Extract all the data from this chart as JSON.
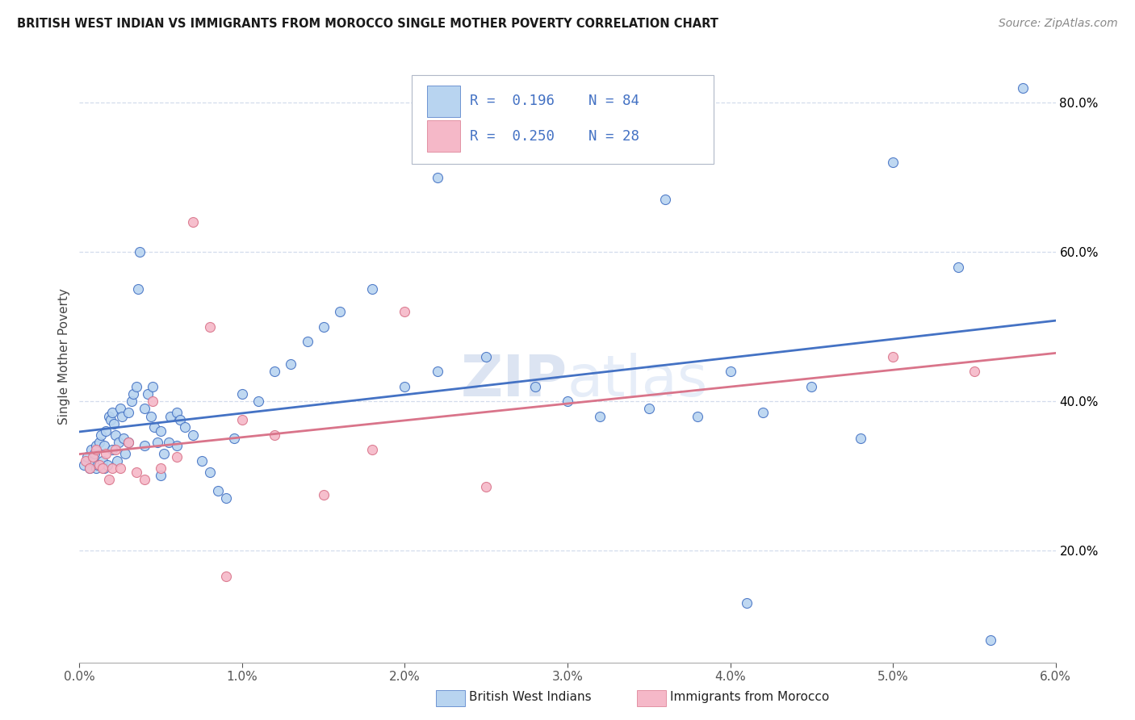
{
  "title": "BRITISH WEST INDIAN VS IMMIGRANTS FROM MOROCCO SINGLE MOTHER POVERTY CORRELATION CHART",
  "source": "Source: ZipAtlas.com",
  "ylabel": "Single Mother Poverty",
  "legend_label1": "British West Indians",
  "legend_label2": "Immigrants from Morocco",
  "R1": 0.196,
  "N1": 84,
  "R2": 0.25,
  "N2": 28,
  "color1": "#b8d4f0",
  "color2": "#f5b8c8",
  "line1_color": "#4472c4",
  "line2_color": "#d9748a",
  "tick_color": "#4472c4",
  "watermark_color": "#c8d8ee",
  "xlim": [
    0.0,
    0.06
  ],
  "ylim": [
    0.05,
    0.87
  ],
  "xticks": [
    0.0,
    0.01,
    0.02,
    0.03,
    0.04,
    0.05,
    0.06
  ],
  "yticks": [
    0.2,
    0.4,
    0.6,
    0.8
  ],
  "blue_x": [
    0.0003,
    0.0005,
    0.0006,
    0.0007,
    0.0008,
    0.0009,
    0.001,
    0.001,
    0.0011,
    0.0012,
    0.0013,
    0.0014,
    0.0015,
    0.0015,
    0.0016,
    0.0017,
    0.0018,
    0.0019,
    0.002,
    0.002,
    0.0021,
    0.0022,
    0.0023,
    0.0024,
    0.0025,
    0.0026,
    0.0027,
    0.0028,
    0.003,
    0.003,
    0.0032,
    0.0033,
    0.0035,
    0.0036,
    0.0037,
    0.004,
    0.004,
    0.0042,
    0.0044,
    0.0045,
    0.0046,
    0.0048,
    0.005,
    0.005,
    0.0052,
    0.0055,
    0.0056,
    0.006,
    0.006,
    0.0062,
    0.0065,
    0.007,
    0.0075,
    0.008,
    0.0085,
    0.009,
    0.0095,
    0.01,
    0.011,
    0.012,
    0.013,
    0.014,
    0.015,
    0.016,
    0.018,
    0.02,
    0.022,
    0.025,
    0.028,
    0.03,
    0.032,
    0.035,
    0.038,
    0.04,
    0.042,
    0.045,
    0.048,
    0.05,
    0.054,
    0.056,
    0.036,
    0.041,
    0.022,
    0.058
  ],
  "blue_y": [
    0.315,
    0.325,
    0.31,
    0.335,
    0.32,
    0.33,
    0.34,
    0.31,
    0.315,
    0.345,
    0.355,
    0.32,
    0.34,
    0.31,
    0.36,
    0.315,
    0.38,
    0.375,
    0.385,
    0.335,
    0.37,
    0.355,
    0.32,
    0.345,
    0.39,
    0.38,
    0.35,
    0.33,
    0.345,
    0.385,
    0.4,
    0.41,
    0.42,
    0.55,
    0.6,
    0.39,
    0.34,
    0.41,
    0.38,
    0.42,
    0.365,
    0.345,
    0.36,
    0.3,
    0.33,
    0.345,
    0.38,
    0.385,
    0.34,
    0.375,
    0.365,
    0.355,
    0.32,
    0.305,
    0.28,
    0.27,
    0.35,
    0.41,
    0.4,
    0.44,
    0.45,
    0.48,
    0.5,
    0.52,
    0.55,
    0.42,
    0.44,
    0.46,
    0.42,
    0.4,
    0.38,
    0.39,
    0.38,
    0.44,
    0.385,
    0.42,
    0.35,
    0.72,
    0.58,
    0.08,
    0.67,
    0.13,
    0.7,
    0.82
  ],
  "pink_x": [
    0.0004,
    0.0006,
    0.0008,
    0.001,
    0.0012,
    0.0014,
    0.0016,
    0.0018,
    0.002,
    0.0022,
    0.0025,
    0.003,
    0.0035,
    0.004,
    0.0045,
    0.005,
    0.006,
    0.007,
    0.008,
    0.009,
    0.01,
    0.012,
    0.015,
    0.018,
    0.02,
    0.025,
    0.05,
    0.055
  ],
  "pink_y": [
    0.32,
    0.31,
    0.325,
    0.335,
    0.315,
    0.31,
    0.33,
    0.295,
    0.31,
    0.335,
    0.31,
    0.345,
    0.305,
    0.295,
    0.4,
    0.31,
    0.325,
    0.64,
    0.5,
    0.165,
    0.375,
    0.355,
    0.275,
    0.335,
    0.52,
    0.285,
    0.46,
    0.44
  ]
}
